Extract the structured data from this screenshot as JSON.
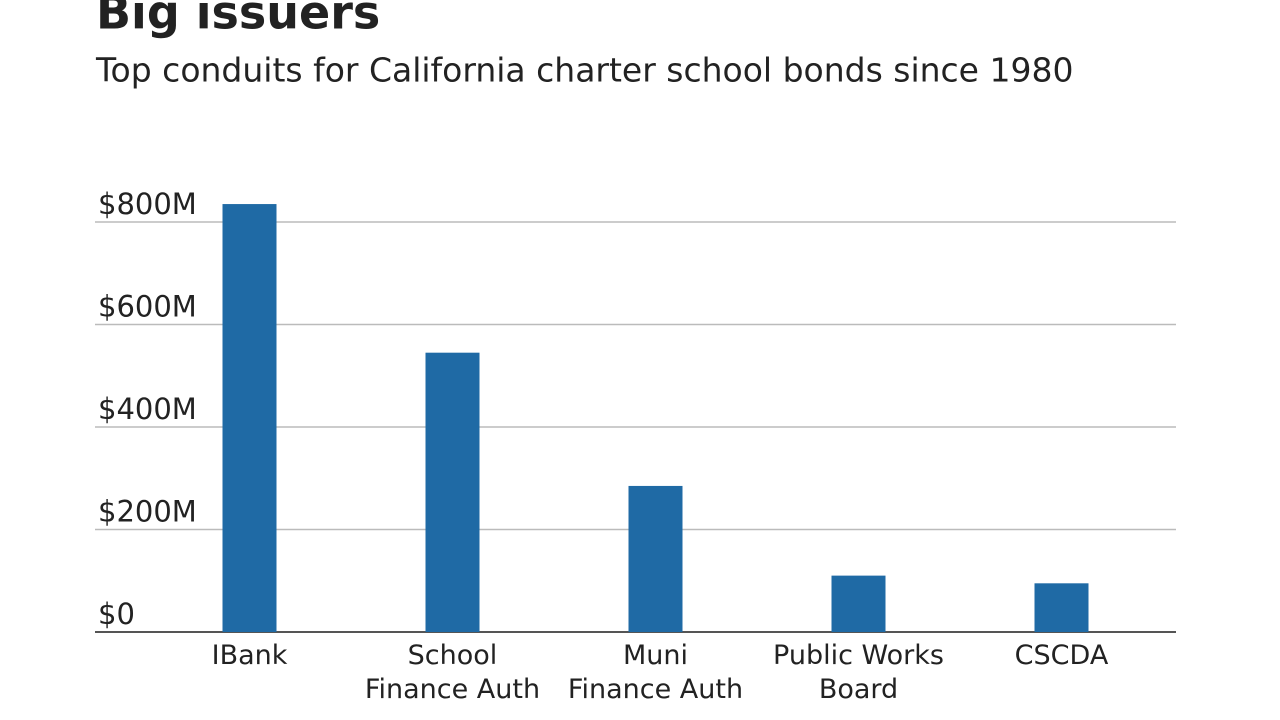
{
  "chart_data": {
    "type": "bar",
    "title": "Big issuers",
    "subtitle": "Top conduits for California charter school bonds since 1980",
    "categories": [
      [
        "IBank"
      ],
      [
        "School",
        "Finance Auth"
      ],
      [
        "Muni",
        "Finance Auth"
      ],
      [
        "Public Works",
        "Board"
      ],
      [
        "CSCDA"
      ]
    ],
    "values": [
      835,
      545,
      285,
      110,
      95
    ],
    "color": "#1f6aa5",
    "ylim": [
      0,
      800
    ],
    "yticks": [
      {
        "value": 0,
        "label": "$0"
      },
      {
        "value": 200,
        "label": "$200M"
      },
      {
        "value": 400,
        "label": "$400M"
      },
      {
        "value": 600,
        "label": "$600M"
      },
      {
        "value": 800,
        "label": "$800M"
      }
    ],
    "grid": true
  }
}
